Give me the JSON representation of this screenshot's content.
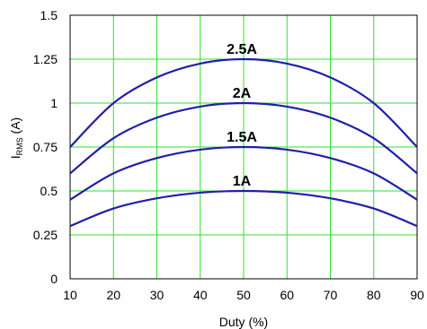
{
  "chart_data": {
    "type": "line",
    "xlabel": "Duty (%)",
    "ylabel": {
      "main": "I",
      "sub": "RMS",
      "unit": " (A)"
    },
    "xlim": [
      10,
      90
    ],
    "ylim": [
      0,
      1.5
    ],
    "x_ticks": [
      "10",
      "20",
      "30",
      "40",
      "50",
      "60",
      "70",
      "80",
      "90"
    ],
    "y_ticks": [
      "0",
      "0.25",
      "0.5",
      "0.75",
      "1",
      "1.25",
      "1.5"
    ],
    "grid": true,
    "colors": {
      "grid": "#33dd33",
      "line": "#1f1fa8",
      "frame": "#000000"
    },
    "x": [
      10,
      20,
      30,
      40,
      50,
      60,
      70,
      80,
      90
    ],
    "series": [
      {
        "name": "1A",
        "values": [
          0.3,
          0.4,
          0.458,
          0.49,
          0.5,
          0.49,
          0.458,
          0.4,
          0.3
        ]
      },
      {
        "name": "1.5A",
        "values": [
          0.45,
          0.6,
          0.687,
          0.735,
          0.75,
          0.735,
          0.687,
          0.6,
          0.45
        ]
      },
      {
        "name": "2A",
        "values": [
          0.6,
          0.8,
          0.917,
          0.98,
          1.0,
          0.98,
          0.917,
          0.8,
          0.6
        ]
      },
      {
        "name": "2.5A",
        "values": [
          0.75,
          1.0,
          1.146,
          1.225,
          1.25,
          1.225,
          1.146,
          1.0,
          0.75
        ]
      }
    ]
  }
}
